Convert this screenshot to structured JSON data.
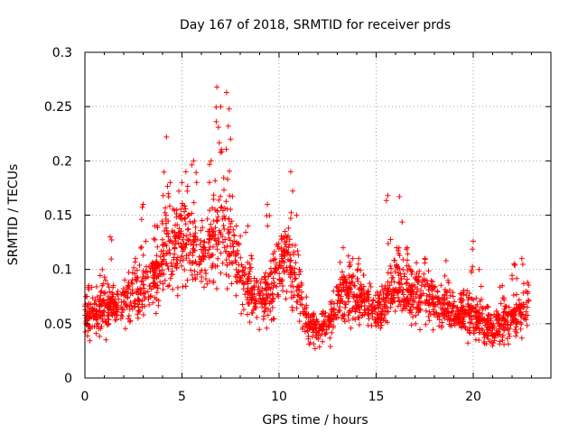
{
  "chart_data": {
    "type": "scatter",
    "title": "Day 167 of 2018, SRMTID for receiver prds",
    "xlabel": "GPS time / hours",
    "ylabel": "SRMTID / TECUs",
    "xlim": [
      0,
      24
    ],
    "ylim": [
      0,
      0.3
    ],
    "x_ticks": [
      "0",
      "5",
      "10",
      "15",
      "20"
    ],
    "y_ticks": [
      "0",
      "0.05",
      "0.1",
      "0.15",
      "0.2",
      "0.25",
      "0.3"
    ],
    "grid": true,
    "marker": "plus",
    "color": "#ff0000",
    "envelope": {
      "x": [
        0,
        0.5,
        1,
        1.5,
        2,
        2.5,
        3,
        3.5,
        4,
        4.5,
        5,
        5.5,
        6,
        6.5,
        7,
        7.5,
        8,
        8.5,
        9,
        9.5,
        10,
        10.5,
        11,
        11.5,
        12,
        12.5,
        13,
        13.5,
        14,
        14.5,
        15,
        15.5,
        16,
        16.5,
        17,
        17.5,
        18,
        18.5,
        19,
        19.5,
        20,
        20.5,
        21,
        21.5,
        22,
        22.5,
        22.8
      ],
      "y": [
        0.06,
        0.06,
        0.065,
        0.065,
        0.07,
        0.075,
        0.085,
        0.09,
        0.11,
        0.12,
        0.125,
        0.115,
        0.11,
        0.12,
        0.14,
        0.12,
        0.1,
        0.08,
        0.07,
        0.08,
        0.1,
        0.11,
        0.08,
        0.05,
        0.045,
        0.05,
        0.065,
        0.08,
        0.075,
        0.065,
        0.06,
        0.065,
        0.09,
        0.08,
        0.075,
        0.075,
        0.07,
        0.065,
        0.06,
        0.06,
        0.055,
        0.05,
        0.045,
        0.05,
        0.055,
        0.06,
        0.065
      ]
    },
    "peaks": [
      {
        "x": 0.2,
        "y": 0.085
      },
      {
        "x": 0.9,
        "y": 0.1
      },
      {
        "x": 1.3,
        "y": 0.13
      },
      {
        "x": 2.6,
        "y": 0.11
      },
      {
        "x": 3.0,
        "y": 0.16
      },
      {
        "x": 3.6,
        "y": 0.14
      },
      {
        "x": 4.2,
        "y": 0.222
      },
      {
        "x": 4.4,
        "y": 0.18
      },
      {
        "x": 5.0,
        "y": 0.18
      },
      {
        "x": 5.2,
        "y": 0.19
      },
      {
        "x": 5.6,
        "y": 0.2
      },
      {
        "x": 6.5,
        "y": 0.2
      },
      {
        "x": 6.8,
        "y": 0.268
      },
      {
        "x": 7.0,
        "y": 0.25
      },
      {
        "x": 7.3,
        "y": 0.263
      },
      {
        "x": 7.5,
        "y": 0.22
      },
      {
        "x": 7.8,
        "y": 0.14
      },
      {
        "x": 8.4,
        "y": 0.14
      },
      {
        "x": 9.4,
        "y": 0.16
      },
      {
        "x": 10.3,
        "y": 0.135
      },
      {
        "x": 10.6,
        "y": 0.19
      },
      {
        "x": 10.9,
        "y": 0.15
      },
      {
        "x": 13.3,
        "y": 0.12
      },
      {
        "x": 13.8,
        "y": 0.11
      },
      {
        "x": 14.1,
        "y": 0.11
      },
      {
        "x": 15.6,
        "y": 0.168
      },
      {
        "x": 16.2,
        "y": 0.167
      },
      {
        "x": 16.6,
        "y": 0.12
      },
      {
        "x": 17.5,
        "y": 0.11
      },
      {
        "x": 18.6,
        "y": 0.108
      },
      {
        "x": 20.0,
        "y": 0.126
      },
      {
        "x": 20.3,
        "y": 0.1
      },
      {
        "x": 21.5,
        "y": 0.085
      },
      {
        "x": 22.1,
        "y": 0.105
      },
      {
        "x": 22.5,
        "y": 0.11
      },
      {
        "x": 22.8,
        "y": 0.088
      }
    ],
    "point_count": 2100
  }
}
